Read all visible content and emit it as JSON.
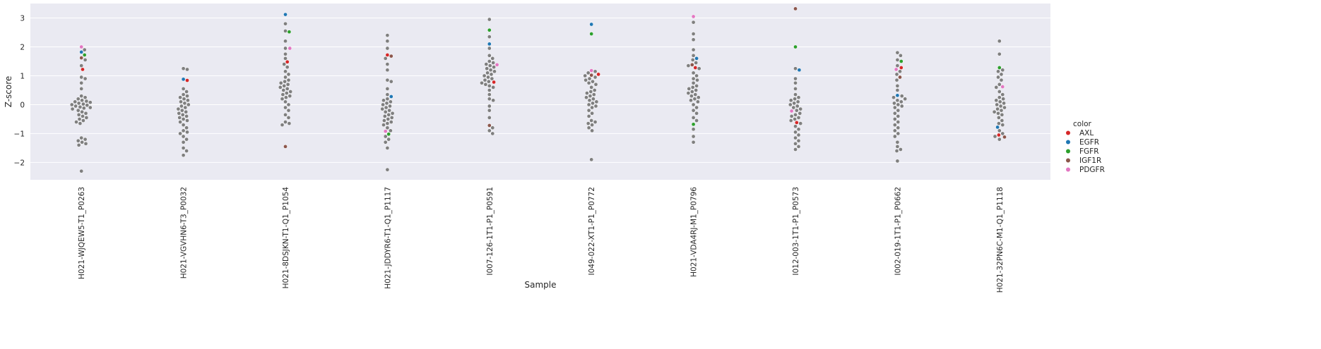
{
  "chart_data": {
    "type": "scatter",
    "subtype": "swarm",
    "xlabel": "Sample",
    "ylabel": "Z-score",
    "ylim": [
      -2.6,
      3.5
    ],
    "yticks": [
      -2,
      -1,
      0,
      1,
      2,
      3
    ],
    "ytick_labels": [
      "−2",
      "−1",
      "0",
      "1",
      "2",
      "3"
    ],
    "grid": true,
    "background": "#eaeaf2",
    "base_color": "#7f7f7f",
    "legend": {
      "title": "color",
      "placement": "right",
      "entries": [
        {
          "label": "AXL",
          "color": "#d62728"
        },
        {
          "label": "EGFR",
          "color": "#1f77b4"
        },
        {
          "label": "FGFR",
          "color": "#2ca02c"
        },
        {
          "label": "IGF1R",
          "color": "#8c564b"
        },
        {
          "label": "PDGFR",
          "color": "#e377c2"
        }
      ]
    },
    "categories": [
      "H021-WJQEW5-T1_P0263",
      "H021-VGVHN6-T3_P0032",
      "H021-8DSJKN-T1-Q1_P1054",
      "H021-JDDYR6-T1-Q1_P1117",
      "I007-126-1T1-P1_P0591",
      "I049-022-XT1-P1_P0772",
      "H021-VDA4RJ-M1_P0796",
      "I012-003-1T1-P1_P0573",
      "I002-019-1T1-P1_P0662",
      "H021-32PN6C-M1-Q1_P1118"
    ],
    "highlighted": [
      {
        "sample": 0,
        "gene": "PDGFR",
        "value": 2.0
      },
      {
        "sample": 0,
        "gene": "EGFR",
        "value": 1.82
      },
      {
        "sample": 0,
        "gene": "FGFR",
        "value": 1.72
      },
      {
        "sample": 0,
        "gene": "IGF1R",
        "value": 1.62
      },
      {
        "sample": 0,
        "gene": "AXL",
        "value": 1.22
      },
      {
        "sample": 1,
        "gene": "EGFR",
        "value": 0.88
      },
      {
        "sample": 1,
        "gene": "AXL",
        "value": 0.84
      },
      {
        "sample": 2,
        "gene": "EGFR",
        "value": 3.12
      },
      {
        "sample": 2,
        "gene": "FGFR",
        "value": 2.52
      },
      {
        "sample": 2,
        "gene": "PDGFR",
        "value": 1.95
      },
      {
        "sample": 2,
        "gene": "AXL",
        "value": 1.48
      },
      {
        "sample": 2,
        "gene": "IGF1R",
        "value": -1.45
      },
      {
        "sample": 3,
        "gene": "AXL",
        "value": 1.72
      },
      {
        "sample": 3,
        "gene": "IGF1R",
        "value": 1.68
      },
      {
        "sample": 3,
        "gene": "EGFR",
        "value": 0.28
      },
      {
        "sample": 3,
        "gene": "PDGFR",
        "value": -0.92
      },
      {
        "sample": 3,
        "gene": "FGFR",
        "value": -1.02
      },
      {
        "sample": 4,
        "gene": "FGFR",
        "value": 2.58
      },
      {
        "sample": 4,
        "gene": "EGFR",
        "value": 2.1
      },
      {
        "sample": 4,
        "gene": "PDGFR",
        "value": 1.38
      },
      {
        "sample": 4,
        "gene": "AXL",
        "value": 0.78
      },
      {
        "sample": 4,
        "gene": "IGF1R",
        "value": -0.72
      },
      {
        "sample": 5,
        "gene": "EGFR",
        "value": 2.78
      },
      {
        "sample": 5,
        "gene": "FGFR",
        "value": 2.45
      },
      {
        "sample": 5,
        "gene": "PDGFR",
        "value": 1.18
      },
      {
        "sample": 5,
        "gene": "AXL",
        "value": 1.05
      },
      {
        "sample": 5,
        "gene": "IGF1R",
        "value": 1.02
      },
      {
        "sample": 6,
        "gene": "PDGFR",
        "value": 3.05
      },
      {
        "sample": 6,
        "gene": "EGFR",
        "value": 1.6
      },
      {
        "sample": 6,
        "gene": "IGF1R",
        "value": 1.38
      },
      {
        "sample": 6,
        "gene": "AXL",
        "value": 1.28
      },
      {
        "sample": 6,
        "gene": "FGFR",
        "value": -0.68
      },
      {
        "sample": 7,
        "gene": "IGF1R",
        "value": 3.32
      },
      {
        "sample": 7,
        "gene": "FGFR",
        "value": 2.0
      },
      {
        "sample": 7,
        "gene": "EGFR",
        "value": 1.2
      },
      {
        "sample": 7,
        "gene": "PDGFR",
        "value": -0.22
      },
      {
        "sample": 7,
        "gene": "AXL",
        "value": -0.62
      },
      {
        "sample": 8,
        "gene": "FGFR",
        "value": 1.5
      },
      {
        "sample": 8,
        "gene": "AXL",
        "value": 1.28
      },
      {
        "sample": 8,
        "gene": "PDGFR",
        "value": 1.22
      },
      {
        "sample": 8,
        "gene": "IGF1R",
        "value": 0.95
      },
      {
        "sample": 8,
        "gene": "EGFR",
        "value": 0.32
      },
      {
        "sample": 9,
        "gene": "FGFR",
        "value": 1.28
      },
      {
        "sample": 9,
        "gene": "PDGFR",
        "value": 0.62
      },
      {
        "sample": 9,
        "gene": "EGFR",
        "value": -0.78
      },
      {
        "sample": 9,
        "gene": "AXL",
        "value": -1.05
      },
      {
        "sample": 9,
        "gene": "IGF1R",
        "value": -1.12
      }
    ],
    "background_points": [
      [
        1.9,
        1.55,
        1.35,
        0.95,
        0.9,
        0.75,
        0.55,
        0.3,
        0.25,
        0.2,
        0.15,
        0.12,
        0.1,
        0.08,
        0.05,
        0.02,
        0.0,
        -0.02,
        -0.05,
        -0.08,
        -0.1,
        -0.12,
        -0.15,
        -0.2,
        -0.25,
        -0.3,
        -0.35,
        -0.4,
        -0.45,
        -0.5,
        -0.55,
        -0.6,
        -0.65,
        -1.15,
        -1.2,
        -1.25,
        -1.3,
        -1.35,
        -1.4,
        -2.3
      ],
      [
        1.25,
        1.22,
        0.55,
        0.45,
        0.35,
        0.3,
        0.25,
        0.2,
        0.15,
        0.1,
        0.05,
        0.0,
        -0.05,
        -0.1,
        -0.15,
        -0.2,
        -0.25,
        -0.3,
        -0.35,
        -0.4,
        -0.45,
        -0.5,
        -0.55,
        -0.6,
        -0.7,
        -0.8,
        -0.9,
        -0.95,
        -1.0,
        -1.1,
        -1.2,
        -1.3,
        -1.5,
        -1.6,
        -1.75
      ],
      [
        2.8,
        2.55,
        2.2,
        1.95,
        1.75,
        1.6,
        1.4,
        1.3,
        1.15,
        1.05,
        0.95,
        0.85,
        0.8,
        0.75,
        0.7,
        0.65,
        0.6,
        0.55,
        0.5,
        0.45,
        0.4,
        0.35,
        0.3,
        0.25,
        0.2,
        0.1,
        0.0,
        -0.1,
        -0.2,
        -0.35,
        -0.45,
        -0.6,
        -0.65,
        -0.7
      ],
      [
        2.4,
        2.2,
        1.95,
        1.6,
        1.4,
        1.2,
        0.85,
        0.8,
        0.55,
        0.35,
        0.2,
        0.15,
        0.1,
        0.05,
        0.0,
        -0.05,
        -0.1,
        -0.15,
        -0.2,
        -0.25,
        -0.3,
        -0.35,
        -0.4,
        -0.45,
        -0.5,
        -0.55,
        -0.6,
        -0.65,
        -0.7,
        -0.8,
        -0.9,
        -1.1,
        -1.2,
        -1.3,
        -1.5,
        -2.25
      ],
      [
        2.95,
        2.35,
        1.95,
        1.7,
        1.6,
        1.5,
        1.45,
        1.4,
        1.35,
        1.3,
        1.25,
        1.2,
        1.15,
        1.1,
        1.05,
        1.0,
        0.95,
        0.9,
        0.85,
        0.8,
        0.75,
        0.7,
        0.65,
        0.6,
        0.5,
        0.35,
        0.2,
        0.15,
        -0.05,
        -0.2,
        -0.45,
        -0.8,
        -0.9,
        -1.0
      ],
      [
        1.15,
        1.1,
        1.0,
        0.95,
        0.9,
        0.85,
        0.8,
        0.75,
        0.7,
        0.6,
        0.5,
        0.45,
        0.4,
        0.35,
        0.3,
        0.25,
        0.2,
        0.15,
        0.1,
        0.05,
        0.0,
        -0.05,
        -0.1,
        -0.2,
        -0.3,
        -0.4,
        -0.55,
        -0.6,
        -0.65,
        -0.7,
        -0.8,
        -0.9,
        -1.9
      ],
      [
        2.85,
        2.45,
        2.25,
        1.9,
        1.7,
        1.55,
        1.45,
        1.35,
        1.25,
        1.1,
        1.0,
        0.9,
        0.85,
        0.75,
        0.65,
        0.6,
        0.55,
        0.5,
        0.45,
        0.4,
        0.35,
        0.3,
        0.25,
        0.2,
        0.15,
        0.1,
        0.0,
        -0.1,
        -0.2,
        -0.3,
        -0.45,
        -0.55,
        -0.85,
        -1.1,
        -1.3
      ],
      [
        1.25,
        0.9,
        0.75,
        0.55,
        0.35,
        0.25,
        0.2,
        0.15,
        0.1,
        0.05,
        0.0,
        -0.05,
        -0.1,
        -0.15,
        -0.2,
        -0.3,
        -0.35,
        -0.4,
        -0.45,
        -0.5,
        -0.55,
        -0.65,
        -0.75,
        -0.85,
        -0.95,
        -1.05,
        -1.15,
        -1.25,
        -1.35,
        -1.45,
        -1.55
      ],
      [
        1.8,
        1.7,
        1.55,
        1.35,
        1.15,
        1.05,
        0.85,
        0.65,
        0.5,
        0.3,
        0.25,
        0.2,
        0.15,
        0.1,
        0.05,
        0.0,
        -0.05,
        -0.1,
        -0.2,
        -0.3,
        -0.4,
        -0.5,
        -0.6,
        -0.7,
        -0.8,
        -0.9,
        -1.0,
        -1.1,
        -1.3,
        -1.45,
        -1.55,
        -1.6,
        -1.95
      ],
      [
        2.2,
        1.75,
        1.2,
        1.15,
        1.05,
        0.95,
        0.85,
        0.7,
        0.6,
        0.45,
        0.35,
        0.25,
        0.2,
        0.15,
        0.1,
        0.05,
        0.0,
        -0.05,
        -0.1,
        -0.15,
        -0.2,
        -0.25,
        -0.3,
        -0.35,
        -0.45,
        -0.55,
        -0.65,
        -0.7,
        -0.9,
        -1.0,
        -1.1,
        -1.2
      ]
    ]
  }
}
